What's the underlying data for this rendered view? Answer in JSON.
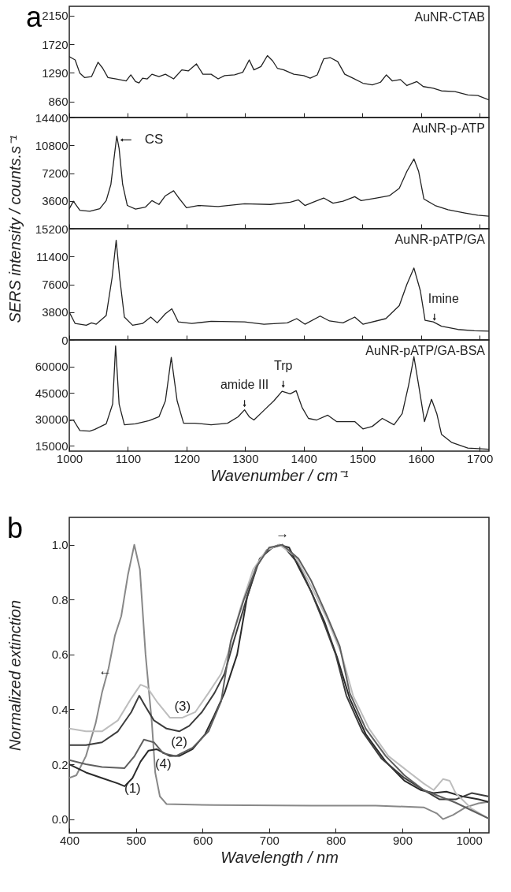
{
  "chart_data": [
    {
      "type": "line",
      "title": "a",
      "x": [
        1000,
        1010,
        1018,
        1026,
        1038,
        1049,
        1057,
        1066,
        1080,
        1097,
        1105,
        1113,
        1119,
        1125,
        1133,
        1141,
        1153,
        1164,
        1178,
        1192,
        1203,
        1217,
        1228,
        1242,
        1254,
        1265,
        1282,
        1296,
        1307,
        1315,
        1327,
        1338,
        1347,
        1355,
        1366,
        1383,
        1400,
        1411,
        1423,
        1434,
        1445,
        1458,
        1470,
        1484,
        1501,
        1517,
        1531,
        1541,
        1551,
        1565,
        1576,
        1593,
        1604,
        1621,
        1635,
        1658,
        1680,
        1697,
        1716
      ],
      "series": [
        {
          "name": "AuNR-CTAB",
          "color": "#222222",
          "values": [
            1535,
            1485,
            1285,
            1220,
            1235,
            1450,
            1360,
            1220,
            1200,
            1170,
            1260,
            1160,
            1140,
            1210,
            1200,
            1270,
            1235,
            1270,
            1200,
            1335,
            1320,
            1425,
            1270,
            1270,
            1200,
            1250,
            1260,
            1300,
            1485,
            1335,
            1385,
            1550,
            1470,
            1360,
            1335,
            1270,
            1250,
            1210,
            1260,
            1500,
            1520,
            1460,
            1270,
            1210,
            1135,
            1110,
            1150,
            1260,
            1170,
            1190,
            1100,
            1160,
            1085,
            1060,
            1020,
            1010,
            960,
            950,
            885
          ]
        }
      ],
      "xlim": [
        1000,
        1716
      ],
      "xticks": [
        1000,
        1100,
        1200,
        1300,
        1400,
        1500,
        1600,
        1700
      ],
      "ylim": [
        620,
        2290
      ],
      "yticks": [
        860,
        1290,
        1720,
        2150
      ],
      "tick_labels": "y"
    },
    {
      "type": "line",
      "ylabel": "SERS intensity  / counts.s⁻¹",
      "x": [
        1000,
        1007,
        1018,
        1035,
        1052,
        1063,
        1071,
        1077,
        1081,
        1085,
        1091,
        1099,
        1113,
        1130,
        1141,
        1153,
        1164,
        1178,
        1186,
        1200,
        1220,
        1254,
        1299,
        1343,
        1377,
        1391,
        1402,
        1416,
        1434,
        1450,
        1467,
        1487,
        1498,
        1524,
        1546,
        1563,
        1576,
        1588,
        1596,
        1605,
        1624,
        1646,
        1675,
        1697,
        1716
      ],
      "series": [
        {
          "name": "AuNR-p-ATP",
          "color": "#222222",
          "values": [
            2590,
            3560,
            2380,
            2250,
            2590,
            3640,
            5750,
            9540,
            11980,
            10380,
            5750,
            3010,
            2550,
            2800,
            3640,
            3140,
            4270,
            4910,
            4060,
            2720,
            3010,
            2880,
            3220,
            3140,
            3430,
            3730,
            3010,
            3430,
            3980,
            3310,
            3560,
            4150,
            3640,
            3980,
            4270,
            5240,
            7430,
            9030,
            7430,
            3850,
            3010,
            2460,
            2040,
            1750,
            1620
          ]
        }
      ],
      "xlim": [
        1000,
        1716
      ],
      "xticks": [
        1000,
        1100,
        1200,
        1300,
        1400,
        1500,
        1600,
        1700
      ],
      "ylim": [
        0,
        14400
      ],
      "yticks": [
        3600,
        7200,
        10800,
        14400
      ],
      "tick_labels": "y",
      "annotations": [
        {
          "text": "CS",
          "x": 1083,
          "y": 11500
        }
      ]
    },
    {
      "type": "line",
      "x": [
        1000,
        1010,
        1029,
        1038,
        1046,
        1063,
        1073,
        1080,
        1086,
        1094,
        1108,
        1125,
        1139,
        1150,
        1164,
        1175,
        1186,
        1209,
        1242,
        1299,
        1332,
        1372,
        1388,
        1402,
        1428,
        1444,
        1467,
        1487,
        1501,
        1540,
        1563,
        1576,
        1588,
        1599,
        1607,
        1621,
        1635,
        1663,
        1691,
        1716
      ],
      "series": [
        {
          "name": "AuNR-pATP/GA",
          "color": "#222222",
          "values": [
            3800,
            2240,
            2010,
            2330,
            2150,
            3350,
            8490,
            13630,
            8490,
            3130,
            2010,
            2240,
            3130,
            2330,
            3580,
            4250,
            2460,
            2240,
            2550,
            2460,
            2150,
            2330,
            2910,
            2150,
            3260,
            2590,
            2330,
            3130,
            2150,
            2910,
            4690,
            7600,
            9830,
            6710,
            2680,
            2460,
            1880,
            1430,
            1250,
            1210
          ]
        }
      ],
      "xlim": [
        1000,
        1716
      ],
      "xticks": [
        1000,
        1100,
        1200,
        1300,
        1400,
        1500,
        1600,
        1700
      ],
      "ylim": [
        0,
        15200
      ],
      "yticks": [
        0,
        3800,
        7600,
        11400,
        15200
      ],
      "tick_labels": "y",
      "annotations": [
        {
          "text": "Imine",
          "x": 1623,
          "y": 2400
        }
      ]
    },
    {
      "type": "line",
      "xlabel": "Wavenumber / cm⁻¹",
      "x": [
        1000,
        1007,
        1018,
        1035,
        1043,
        1063,
        1074,
        1079,
        1085,
        1094,
        1113,
        1136,
        1153,
        1164,
        1174,
        1184,
        1195,
        1214,
        1242,
        1270,
        1288,
        1299,
        1307,
        1315,
        1332,
        1349,
        1363,
        1377,
        1387,
        1397,
        1408,
        1422,
        1441,
        1456,
        1487,
        1501,
        1517,
        1534,
        1554,
        1568,
        1579,
        1588,
        1596,
        1606,
        1618,
        1627,
        1635,
        1652,
        1680,
        1716
      ],
      "series": [
        {
          "name": "AuNR-pATP/GA-BSA",
          "color": "#222222",
          "values": [
            29280,
            29640,
            23680,
            23310,
            24220,
            27470,
            38670,
            71600,
            38670,
            26930,
            27470,
            29280,
            31450,
            40480,
            65100,
            40480,
            27830,
            27830,
            26930,
            27830,
            31450,
            35420,
            31450,
            29640,
            35060,
            40480,
            45900,
            44460,
            46260,
            36870,
            30540,
            29640,
            32350,
            28740,
            28740,
            24580,
            26020,
            30540,
            26930,
            33250,
            49520,
            65500,
            49520,
            28740,
            41380,
            33250,
            21510,
            16990,
            13740,
            13020
          ]
        }
      ],
      "xlim": [
        1000,
        1716
      ],
      "xticks": [
        1000,
        1100,
        1200,
        1300,
        1400,
        1500,
        1600,
        1700
      ],
      "ylim": [
        12000,
        75000
      ],
      "yticks": [
        15000,
        30000,
        45000,
        60000
      ],
      "annotations": [
        {
          "text": "amide III",
          "x": 1299,
          "y": 36000
        },
        {
          "text": "Trp",
          "x": 1365,
          "y": 47000
        }
      ]
    },
    {
      "type": "line",
      "title": "b",
      "xlabel": "Wavelength / nm",
      "ylabel": "Normalized extinction",
      "series": [
        {
          "color": "#888888",
          "x": [
            400,
            410.6,
            425,
            439.6,
            449,
            459,
            468.6,
            478,
            488,
            497.6,
            506,
            514.5,
            524,
            529,
            536,
            546,
            618,
            763,
            860,
            932,
            951.7,
            961,
            976,
            995,
            1014.5,
            1029
          ],
          "values": [
            0.15,
            0.16,
            0.23,
            0.35,
            0.46,
            0.55,
            0.67,
            0.74,
            0.89,
            1.0,
            0.91,
            0.6,
            0.35,
            0.17,
            0.083,
            0.055,
            0.051,
            0.049,
            0.049,
            0.043,
            0.021,
            0.0,
            0.015,
            0.043,
            0.058,
            0.063
          ]
        },
        {
          "color": "#2a2a2a",
          "x": [
            400,
            425,
            449,
            473,
            483,
            495,
            507,
            519,
            531,
            551,
            565,
            585,
            604,
            618,
            633,
            652,
            667,
            681,
            696,
            715,
            730,
            744,
            763,
            783,
            802,
            821,
            845,
            875,
            903,
            927.5,
            947,
            966,
            990,
            1014.5,
            1029
          ],
          "values": [
            0.2,
            0.17,
            0.15,
            0.13,
            0.12,
            0.15,
            0.21,
            0.25,
            0.255,
            0.23,
            0.23,
            0.255,
            0.31,
            0.38,
            0.46,
            0.6,
            0.81,
            0.92,
            0.98,
            1.0,
            0.99,
            0.92,
            0.83,
            0.72,
            0.59,
            0.44,
            0.31,
            0.21,
            0.14,
            0.106,
            0.095,
            0.1,
            0.083,
            0.072,
            0.063
          ]
        },
        {
          "color": "#3c3c3c",
          "x": [
            400,
            425,
            449,
            473,
            493,
            505,
            514.5,
            527,
            546,
            565,
            580,
            599,
            618,
            633,
            647,
            667,
            686,
            705,
            720,
            744,
            763,
            783,
            800,
            816,
            840,
            869,
            903,
            932,
            956,
            980,
            1004,
            1029
          ],
          "values": [
            0.27,
            0.27,
            0.28,
            0.32,
            0.39,
            0.45,
            0.41,
            0.36,
            0.33,
            0.32,
            0.34,
            0.39,
            0.46,
            0.53,
            0.65,
            0.81,
            0.95,
            0.99,
            1.0,
            0.93,
            0.83,
            0.71,
            0.6,
            0.45,
            0.32,
            0.22,
            0.15,
            0.106,
            0.072,
            0.072,
            0.095,
            0.083
          ]
        },
        {
          "color": "#bdbdbd",
          "x": [
            400,
            425,
            449,
            473,
            493,
            507,
            517,
            531,
            551,
            570,
            589,
            609,
            628,
            637.7,
            657,
            676,
            696,
            715,
            739,
            763,
            787,
            809,
            826,
            850,
            879,
            908,
            932,
            947,
            961,
            971,
            980,
            1004,
            1029
          ],
          "values": [
            0.33,
            0.32,
            0.32,
            0.36,
            0.44,
            0.49,
            0.48,
            0.43,
            0.37,
            0.37,
            0.39,
            0.46,
            0.53,
            0.6,
            0.77,
            0.91,
            0.98,
            1.0,
            0.96,
            0.85,
            0.73,
            0.6,
            0.45,
            0.33,
            0.23,
            0.175,
            0.13,
            0.106,
            0.146,
            0.14,
            0.095,
            0.038,
            0.003
          ]
        },
        {
          "color": "#5f5f5f",
          "x": [
            400,
            425,
            449,
            483,
            498,
            512,
            527,
            541,
            560,
            585,
            609,
            628,
            642.5,
            662,
            681,
            700,
            720,
            744,
            763,
            787,
            806,
            821,
            845,
            875,
            903,
            932,
            956,
            980,
            1004,
            1029
          ],
          "values": [
            0.215,
            0.2,
            0.19,
            0.186,
            0.23,
            0.29,
            0.28,
            0.24,
            0.23,
            0.26,
            0.32,
            0.43,
            0.65,
            0.8,
            0.92,
            0.99,
            1.0,
            0.95,
            0.87,
            0.74,
            0.63,
            0.46,
            0.33,
            0.23,
            0.16,
            0.106,
            0.083,
            0.06,
            0.032,
            0.003
          ]
        }
      ],
      "xlim": [
        400,
        1030
      ],
      "xticks": [
        400,
        500,
        600,
        700,
        800,
        900,
        1000
      ],
      "ylim": [
        -0.05,
        1.1
      ],
      "yticks": [
        {
          "value": 0,
          "label": "0.0"
        },
        {
          "value": 0.2,
          "label": "0.2"
        },
        {
          "value": 0.4,
          "label": "0.4"
        },
        {
          "value": 0.6,
          "label": "0.6"
        },
        {
          "value": 0.8,
          "label": "0.8"
        },
        {
          "value": 1,
          "label": "1.0"
        }
      ],
      "annotations": [
        {
          "text": "(1)",
          "x": 495,
          "y": 0.15
        },
        {
          "text": "(2)",
          "x": 565,
          "y": 0.32
        },
        {
          "text": "(3)",
          "x": 570,
          "y": 0.37
        },
        {
          "text": "(4)",
          "x": 541,
          "y": 0.24
        },
        {
          "text": "←",
          "x": 454,
          "y": 0.5
        },
        {
          "text": "→",
          "x": 720,
          "y": 1.0
        }
      ]
    }
  ]
}
